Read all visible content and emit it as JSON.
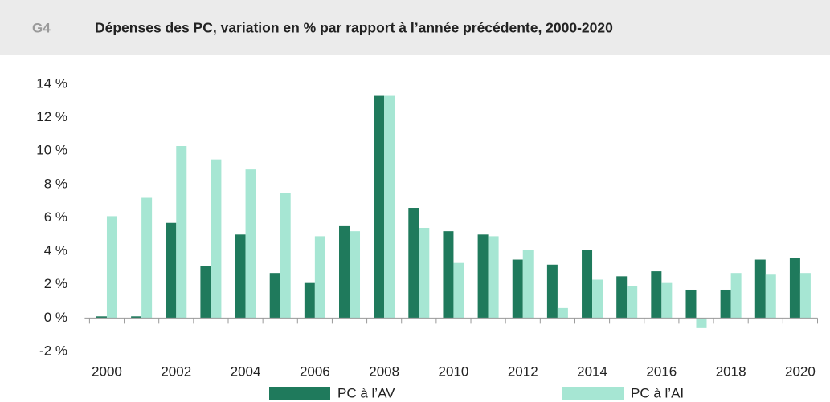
{
  "chart_data": {
    "type": "bar",
    "id_label": "G4",
    "title": "Dépenses des PC, variation en % par rapport à l’année précédente, 2000-2020",
    "categories": [
      "2000",
      null,
      "2002",
      null,
      "2004",
      null,
      "2006",
      null,
      "2008",
      null,
      "2010",
      null,
      "2012",
      null,
      "2014",
      null,
      "2016",
      null,
      "2018",
      null,
      "2020"
    ],
    "series": [
      {
        "name": "PC à l’AV",
        "color": "#1f7a5c",
        "values": [
          0.1,
          0.1,
          5.7,
          3.1,
          5.0,
          2.7,
          2.1,
          5.5,
          13.3,
          6.6,
          5.2,
          5.0,
          3.5,
          3.2,
          4.1,
          2.5,
          2.8,
          1.7,
          1.7,
          3.5,
          3.6
        ]
      },
      {
        "name": "PC à l’AI",
        "color": "#a6e6d3",
        "values": [
          6.1,
          7.2,
          10.3,
          9.5,
          8.9,
          7.5,
          4.9,
          5.2,
          13.3,
          5.4,
          3.3,
          4.9,
          4.1,
          0.6,
          2.3,
          1.9,
          2.1,
          -0.6,
          2.7,
          2.6,
          2.7
        ]
      }
    ],
    "ylim": [
      -2,
      14
    ],
    "yticks": [
      {
        "value": -2,
        "label": "-2 %"
      },
      {
        "value": 0,
        "label": "0 %"
      },
      {
        "value": 2,
        "label": "2 %"
      },
      {
        "value": 4,
        "label": "4 %"
      },
      {
        "value": 6,
        "label": "6 %"
      },
      {
        "value": 8,
        "label": "8 %"
      },
      {
        "value": 10,
        "label": "10 %"
      },
      {
        "value": 12,
        "label": "12 %"
      },
      {
        "value": 14,
        "label": "14 %"
      }
    ],
    "grid": false
  }
}
